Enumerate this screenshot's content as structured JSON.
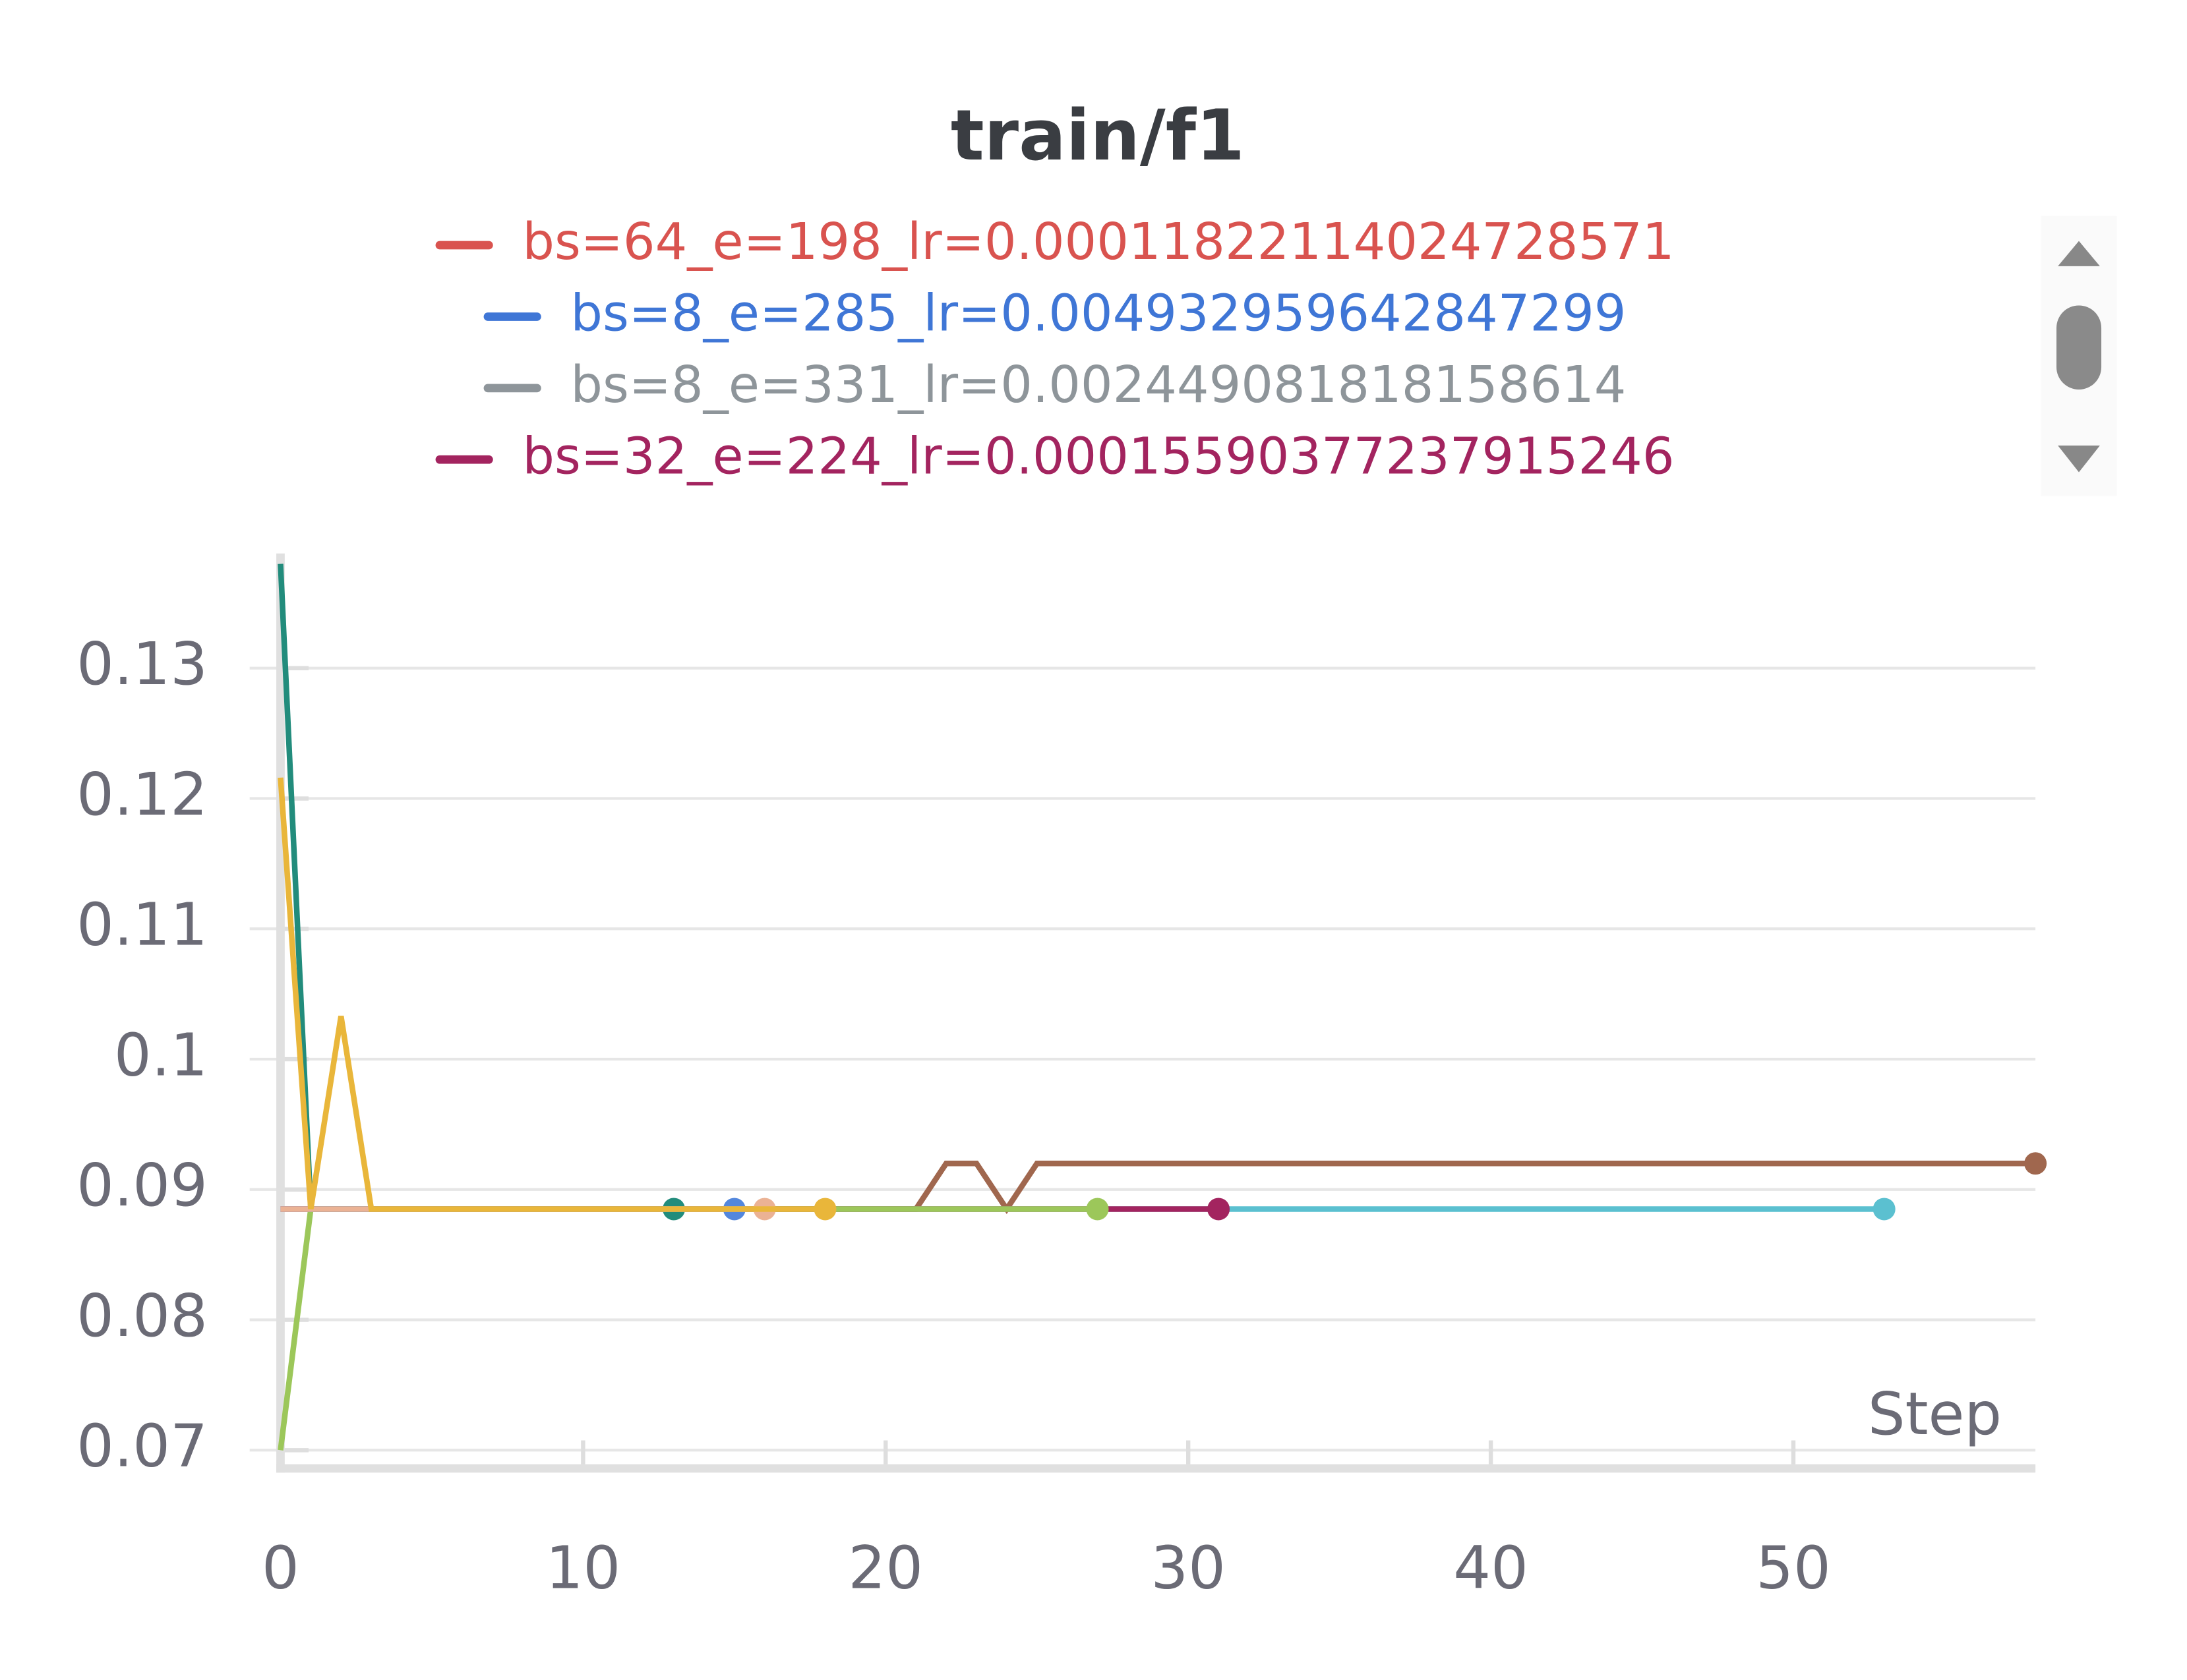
{
  "chart_data": {
    "type": "line",
    "title": "train/f1",
    "x_label": "Step",
    "legend": [
      {
        "name": "bs=64_e=198_lr=0.00011822114024728571",
        "color": "#d9534f"
      },
      {
        "name": "bs=8_e=285_lr=0.004932959642847299",
        "color": "#3f76d6"
      },
      {
        "name": "bs=8_e=331_lr=0.002449081818158614",
        "color": "#8e959a"
      },
      {
        "name": "bs=32_e=224_lr=0.00015590377237915246",
        "color": "#a3245f"
      }
    ],
    "x": [
      0,
      1,
      2,
      3,
      4,
      5,
      6,
      7,
      8,
      9,
      10,
      11,
      12,
      13,
      14,
      15,
      16,
      17,
      18,
      19,
      20,
      21,
      22,
      23,
      24,
      25,
      26,
      27,
      28,
      29,
      30,
      31,
      32,
      33,
      34,
      35,
      36,
      37,
      38,
      39,
      40,
      41,
      42,
      43,
      44,
      45,
      46,
      47,
      48,
      49,
      50,
      51,
      52,
      53,
      54,
      55,
      56,
      57,
      58
    ],
    "series": [
      {
        "color": "#a0674e",
        "values": [
          0.0885,
          0.0885,
          0.0885,
          0.0885,
          0.0885,
          0.0885,
          0.0885,
          0.0885,
          0.0885,
          0.0885,
          0.0885,
          0.0885,
          0.0885,
          0.0885,
          0.0885,
          0.0885,
          0.0885,
          0.0885,
          0.0885,
          0.0885,
          0.0885,
          0.0885,
          0.092,
          0.092,
          0.0885,
          0.092,
          0.092,
          0.092,
          0.092,
          0.092,
          0.092,
          0.092,
          0.092,
          0.092,
          0.092,
          0.092,
          0.092,
          0.092,
          0.092,
          0.092,
          0.092,
          0.092,
          0.092,
          0.092,
          0.092,
          0.092,
          0.092,
          0.092,
          0.092,
          0.092,
          0.092,
          0.092,
          0.092,
          0.092,
          0.092,
          0.092,
          0.092,
          0.092,
          0.092
        ]
      },
      {
        "color": "#5bc0d0",
        "values": [
          0.0885,
          0.0885,
          0.0885,
          0.0885,
          0.0885,
          0.0885,
          0.0885,
          0.0885,
          0.0885,
          0.0885,
          0.0885,
          0.0885,
          0.0885,
          0.0885,
          0.0885,
          0.0885,
          0.0885,
          0.0885,
          0.0885,
          0.0885,
          0.0885,
          0.0885,
          0.0885,
          0.0885,
          0.0885,
          0.0885,
          0.0885,
          0.0885,
          0.0885,
          0.0885,
          0.0885,
          0.0885,
          0.0885,
          0.0885,
          0.0885,
          0.0885,
          0.0885,
          0.0885,
          0.0885,
          0.0885,
          0.0885,
          0.0885,
          0.0885,
          0.0885,
          0.0885,
          0.0885,
          0.0885,
          0.0885,
          0.0885,
          0.0885,
          0.0885,
          0.0885,
          0.0885,
          0.0885,
          null,
          null,
          null,
          null,
          null
        ]
      },
      {
        "color": "#a3245f",
        "values": [
          0.0885,
          0.0885,
          0.0885,
          0.0885,
          0.0885,
          0.0885,
          0.0885,
          0.0885,
          0.0885,
          0.0885,
          0.0885,
          0.0885,
          0.0885,
          0.0885,
          0.0885,
          0.0885,
          0.0885,
          0.0885,
          0.0885,
          0.0885,
          0.0885,
          0.0885,
          0.0885,
          0.0885,
          0.0885,
          0.0885,
          0.0885,
          0.0885,
          0.0885,
          0.0885,
          0.0885,
          0.0885,
          null,
          null,
          null,
          null,
          null,
          null,
          null,
          null,
          null,
          null,
          null,
          null,
          null,
          null,
          null,
          null,
          null,
          null,
          null,
          null,
          null,
          null,
          null,
          null,
          null,
          null,
          null
        ]
      },
      {
        "color": "#9cc75a",
        "values": [
          0.07,
          0.0885,
          0.0885,
          0.0885,
          0.0885,
          0.0885,
          0.0885,
          0.0885,
          0.0885,
          0.0885,
          0.0885,
          0.0885,
          0.0885,
          0.0885,
          0.0885,
          0.0885,
          0.0885,
          0.0885,
          0.0885,
          0.0885,
          0.0885,
          0.0885,
          0.0885,
          0.0885,
          0.0885,
          0.0885,
          0.0885,
          0.0885,
          null,
          null,
          null,
          null,
          null,
          null,
          null,
          null,
          null,
          null,
          null,
          null,
          null,
          null,
          null,
          null,
          null,
          null,
          null,
          null,
          null,
          null,
          null,
          null,
          null,
          null,
          null,
          null,
          null,
          null,
          null
        ]
      },
      {
        "color": "#228c7c",
        "values": [
          0.138,
          0.0885,
          0.0885,
          0.0885,
          0.0885,
          0.0885,
          0.0885,
          0.0885,
          0.0885,
          0.0885,
          0.0885,
          0.0885,
          0.0885,
          0.0885,
          null,
          null,
          null,
          null,
          null,
          null,
          null,
          null,
          null,
          null,
          null,
          null,
          null,
          null,
          null,
          null,
          null,
          null,
          null,
          null,
          null,
          null,
          null,
          null,
          null,
          null,
          null,
          null,
          null,
          null,
          null,
          null,
          null,
          null,
          null,
          null,
          null,
          null,
          null,
          null,
          null,
          null,
          null,
          null,
          null
        ]
      },
      {
        "color": "#5387dd",
        "values": [
          0.0885,
          0.0885,
          0.0885,
          0.0885,
          0.0885,
          0.0885,
          0.0885,
          0.0885,
          0.0885,
          0.0885,
          0.0885,
          0.0885,
          0.0885,
          0.0885,
          0.0885,
          0.0885,
          null,
          null,
          null,
          null,
          null,
          null,
          null,
          null,
          null,
          null,
          null,
          null,
          null,
          null,
          null,
          null,
          null,
          null,
          null,
          null,
          null,
          null,
          null,
          null,
          null,
          null,
          null,
          null,
          null,
          null,
          null,
          null,
          null,
          null,
          null,
          null,
          null,
          null,
          null,
          null,
          null,
          null,
          null
        ]
      },
      {
        "color": "#ebb294",
        "values": [
          0.0885,
          0.0885,
          0.0885,
          0.0885,
          0.0885,
          0.0885,
          0.0885,
          0.0885,
          0.0885,
          0.0885,
          0.0885,
          0.0885,
          0.0885,
          0.0885,
          0.0885,
          0.0885,
          0.0885,
          null,
          null,
          null,
          null,
          null,
          null,
          null,
          null,
          null,
          null,
          null,
          null,
          null,
          null,
          null,
          null,
          null,
          null,
          null,
          null,
          null,
          null,
          null,
          null,
          null,
          null,
          null,
          null,
          null,
          null,
          null,
          null,
          null,
          null,
          null,
          null,
          null,
          null,
          null,
          null,
          null,
          null
        ]
      },
      {
        "color": "#e9b63a",
        "values": [
          0.1216,
          0.0885,
          0.1033,
          0.0885,
          0.0885,
          0.0885,
          0.0885,
          0.0885,
          0.0885,
          0.0885,
          0.0885,
          0.0885,
          0.0885,
          0.0885,
          0.0885,
          0.0885,
          0.0885,
          0.0885,
          0.0885,
          null,
          null,
          null,
          null,
          null,
          null,
          null,
          null,
          null,
          null,
          null,
          null,
          null,
          null,
          null,
          null,
          null,
          null,
          null,
          null,
          null,
          null,
          null,
          null,
          null,
          null,
          null,
          null,
          null,
          null,
          null,
          null,
          null,
          null,
          null,
          null,
          null,
          null,
          null,
          null
        ]
      }
    ],
    "xlim": [
      0,
      58
    ],
    "ylim": [
      0.0686,
      0.1388
    ],
    "xticks": [
      0,
      10,
      20,
      30,
      40,
      50
    ],
    "yticks": [
      0.07,
      0.08,
      0.09,
      0.1,
      0.11,
      0.12,
      0.13
    ],
    "grid": true
  }
}
